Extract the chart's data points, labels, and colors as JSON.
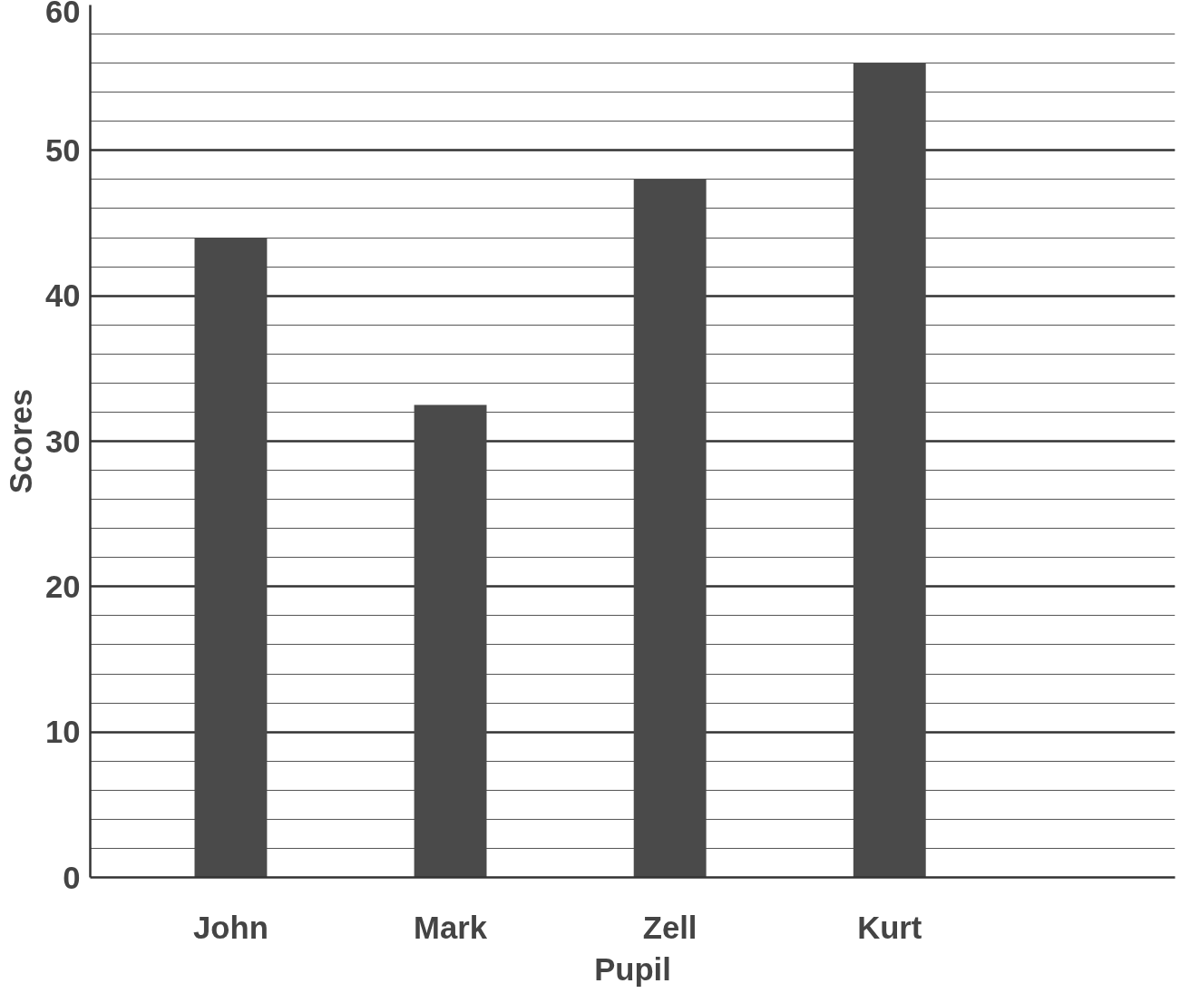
{
  "chart_data": {
    "type": "bar",
    "xlabel": "Pupil",
    "ylabel": "Scores",
    "categories": [
      "John",
      "Mark",
      "Zell",
      "Kurt"
    ],
    "values": [
      44,
      32.5,
      48,
      56
    ],
    "color": "#4a4a4a",
    "ylim": [
      0,
      60
    ],
    "yticks": [
      0,
      10,
      20,
      30,
      40,
      50,
      60
    ],
    "grid": "y"
  }
}
